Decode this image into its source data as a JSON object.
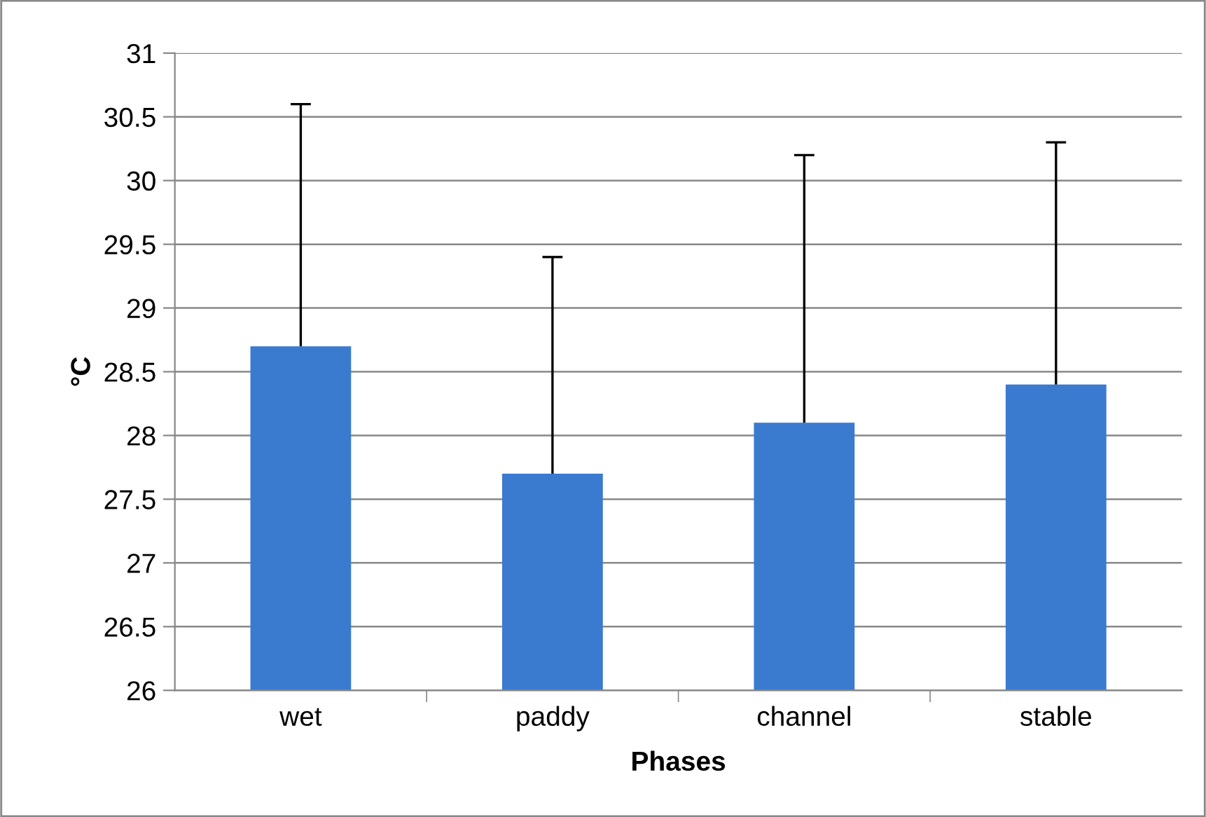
{
  "chart_data": {
    "type": "bar",
    "xlabel": "Phases",
    "ylabel": "°C",
    "categories": [
      "wet",
      "paddy",
      "channel",
      "stable"
    ],
    "values": [
      28.7,
      27.7,
      28.1,
      28.4
    ],
    "errors": [
      [
        28.7,
        30.6
      ],
      [
        27.7,
        29.4
      ],
      [
        28.1,
        30.2
      ],
      [
        28.4,
        30.3
      ]
    ],
    "color": "#3a7bd0",
    "ylim": [
      26,
      31
    ],
    "yticks": [
      26,
      26.5,
      27,
      27.5,
      28,
      28.5,
      29,
      29.5,
      30,
      30.5,
      31
    ],
    "grid": "y"
  }
}
